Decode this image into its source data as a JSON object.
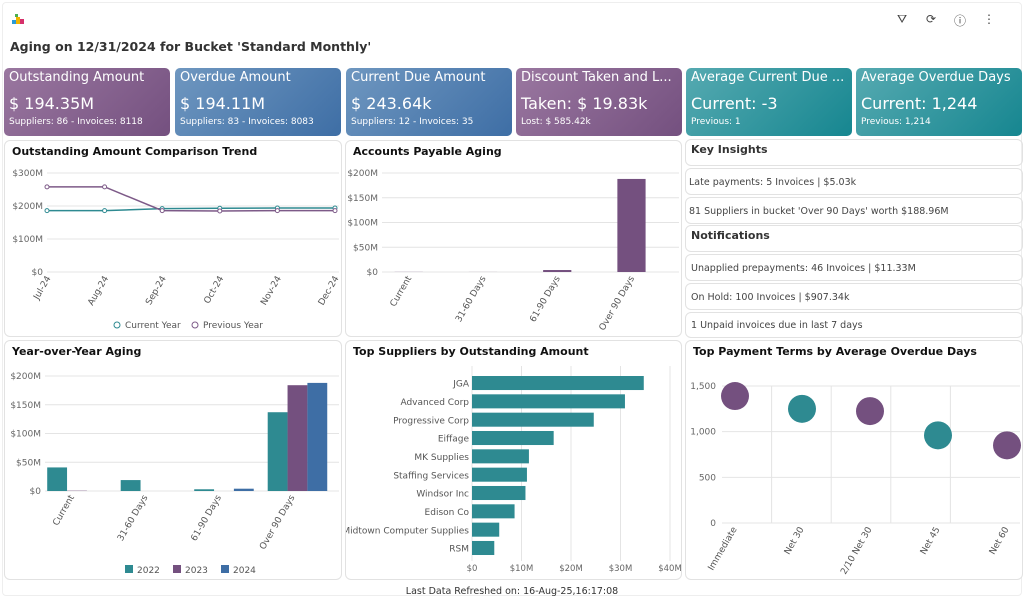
{
  "header": {
    "title": "Aging on 12/31/2024 for Bucket 'Standard Monthly'",
    "tools": [
      "filter-icon",
      "refresh-icon",
      "info-icon",
      "more-icon"
    ]
  },
  "cards": [
    {
      "title": "Outstanding Amount",
      "value": "$ 194.35M",
      "sub": "Suppliers: 86 - Invoices: 8118",
      "color": "purple"
    },
    {
      "title": "Overdue Amount",
      "value": "$ 194.11M",
      "sub": "Suppliers: 83 - Invoices: 8083",
      "color": "blue"
    },
    {
      "title": "Current Due Amount",
      "value": "$ 243.64k",
      "sub": "Suppliers: 12 - Invoices: 35",
      "color": "blue"
    },
    {
      "title": "Discount Taken and L...",
      "value": "Taken: $ 19.83k",
      "sub": "Lost: $ 585.42k",
      "color": "purple"
    },
    {
      "title": "Average Current Due ...",
      "value": "Current: -3",
      "sub": "Previous: 1",
      "color": "teal"
    },
    {
      "title": "Average Overdue Days",
      "value": "Current: 1,244",
      "sub": "Previous: 1,214",
      "color": "teal"
    }
  ],
  "insights": {
    "title": "Key Insights",
    "items": [
      "Late payments: 5 Invoices | $5.03k",
      "81 Suppliers in bucket 'Over 90 Days' worth $188.96M"
    ]
  },
  "notifications": {
    "title": "Notifications",
    "items": [
      "Unapplied prepayments: 46 Invoices | $11.33M",
      "On Hold: 100 Invoices | $907.34k",
      "1 Unpaid invoices due in last 7 days"
    ]
  },
  "footer": "Last Data Refreshed on: 16-Aug-25,16:17:08",
  "chart_data": [
    {
      "id": "trend",
      "type": "line",
      "title": "Outstanding Amount Comparison Trend",
      "categories": [
        "Jul-24",
        "Aug-24",
        "Sep-24",
        "Oct-24",
        "Nov-24",
        "Dec-24"
      ],
      "yticks": [
        "$0",
        "$100M",
        "$200M",
        "$300M"
      ],
      "ylim": [
        0,
        300
      ],
      "unit": "$M",
      "grid": true,
      "legend": "bottom",
      "series": [
        {
          "name": "Current Year",
          "values": [
            186,
            186,
            192,
            193,
            194,
            194
          ],
          "color": "#2e8a91"
        },
        {
          "name": "Previous Year",
          "values": [
            258,
            258,
            186,
            185,
            186,
            186
          ],
          "color": "#7d5a88"
        }
      ]
    },
    {
      "id": "ap",
      "type": "bar",
      "title": "Accounts Payable Aging",
      "categories": [
        "Current",
        "31-60 Days",
        "61-90 Days",
        "Over 90 Days"
      ],
      "values": [
        0.2,
        0.1,
        4,
        188
      ],
      "yticks": [
        "$0",
        "$50M",
        "$100M",
        "$150M",
        "$200M"
      ],
      "ylim": [
        0,
        200
      ],
      "unit": "$M",
      "color": "#74507f",
      "grid": true
    },
    {
      "id": "yoy",
      "type": "bar",
      "title": "Year-over-Year Aging",
      "categories": [
        "Current",
        "31-60 Days",
        "61-90 Days",
        "Over 90 Days"
      ],
      "yticks": [
        "$0",
        "$50M",
        "$100M",
        "$150M",
        "$200M"
      ],
      "ylim": [
        0,
        200
      ],
      "unit": "$M",
      "grid": true,
      "legend": "bottom",
      "series": [
        {
          "name": "2022",
          "values": [
            41,
            19,
            3,
            137
          ],
          "color": "#2e8a91"
        },
        {
          "name": "2023",
          "values": [
            0.5,
            0,
            0,
            184
          ],
          "color": "#74507f"
        },
        {
          "name": "2024",
          "values": [
            0,
            0,
            4,
            188
          ],
          "color": "#3e6ea5"
        }
      ]
    },
    {
      "id": "sup",
      "type": "bar",
      "orientation": "horizontal",
      "title": "Top Suppliers by Outstanding Amount",
      "categories": [
        "JGA",
        "Advanced Corp",
        "Progressive Corp",
        "Eiffage",
        "MK Supplies",
        "Staffing Services",
        "Windsor Inc",
        "Edison Co",
        "Midtown Computer Supplies",
        "RSM"
      ],
      "values": [
        34.7,
        30.9,
        24.6,
        16.5,
        11.5,
        11.1,
        10.8,
        8.6,
        5.5,
        4.5
      ],
      "xticks": [
        "$0",
        "$10M",
        "$20M",
        "$30M",
        "$40M"
      ],
      "xlim": [
        0,
        40
      ],
      "unit": "$M",
      "color": "#2e8a91",
      "grid": true
    },
    {
      "id": "terms",
      "type": "scatter",
      "title": "Top Payment Terms by Average Overdue Days",
      "categories": [
        "Immediate",
        "Net 30",
        "2/10 Net 30",
        "Net 45",
        "Net 60"
      ],
      "values": [
        1390,
        1250,
        1225,
        960,
        850
      ],
      "colors": [
        "#74507f",
        "#2e8a91",
        "#74507f",
        "#2e8a91",
        "#74507f"
      ],
      "yticks": [
        "0",
        "500",
        "1,000",
        "1,500"
      ],
      "ylim": [
        0,
        1500
      ],
      "grid": true
    }
  ]
}
